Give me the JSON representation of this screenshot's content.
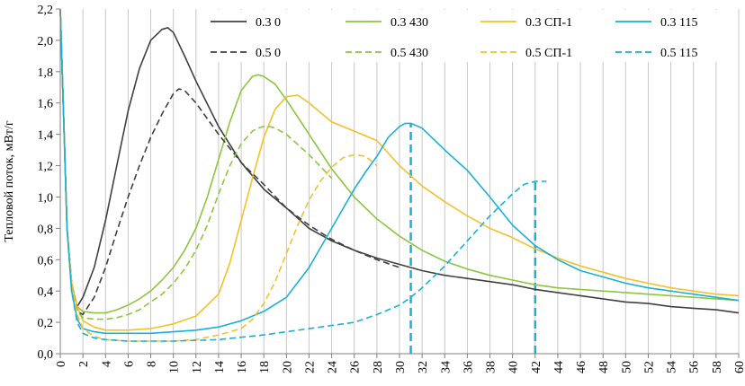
{
  "chart_data": {
    "type": "line",
    "title": "",
    "xlabel": "",
    "ylabel": "Тепловой поток, мВт/г",
    "xlim": [
      0,
      60
    ],
    "ylim": [
      0,
      2.2
    ],
    "x_ticks": [
      0,
      2,
      4,
      6,
      8,
      10,
      12,
      14,
      16,
      18,
      20,
      22,
      24,
      26,
      28,
      30,
      32,
      34,
      36,
      38,
      40,
      42,
      44,
      46,
      48,
      50,
      52,
      54,
      56,
      58,
      60
    ],
    "y_ticks": [
      0,
      0.2,
      0.4,
      0.6,
      0.8,
      1.0,
      1.2,
      1.4,
      1.6,
      1.8,
      2.0,
      2.2
    ],
    "y_tick_labels": [
      "0,0",
      "0,2",
      "0,4",
      "0,6",
      "0,8",
      "1,0",
      "1,2",
      "1,4",
      "1,6",
      "1,8",
      "2,0",
      "2,2"
    ],
    "grid": "vertical",
    "legend_position": "top-right",
    "series": [
      {
        "name": "0.3 0",
        "color": "#404040",
        "dash": "solid",
        "x": [
          0,
          0.3,
          0.6,
          1.0,
          1.5,
          2,
          3,
          4,
          5,
          6,
          7,
          8,
          9,
          9.5,
          10,
          11,
          12,
          14,
          16,
          18,
          20,
          22,
          24,
          26,
          28,
          30,
          32,
          34,
          36,
          38,
          40,
          42,
          44,
          46,
          48,
          50,
          52,
          54,
          56,
          58,
          60
        ],
        "y": [
          2.2,
          1.5,
          0.8,
          0.45,
          0.3,
          0.36,
          0.55,
          0.85,
          1.2,
          1.55,
          1.82,
          2.0,
          2.07,
          2.08,
          2.05,
          1.9,
          1.74,
          1.45,
          1.22,
          1.05,
          0.93,
          0.8,
          0.72,
          0.66,
          0.61,
          0.57,
          0.53,
          0.5,
          0.48,
          0.46,
          0.44,
          0.41,
          0.39,
          0.37,
          0.35,
          0.33,
          0.32,
          0.3,
          0.29,
          0.28,
          0.26
        ]
      },
      {
        "name": "0.3 430",
        "color": "#8cc63f",
        "dash": "solid",
        "x": [
          0,
          0.3,
          0.6,
          1.0,
          1.5,
          2,
          3,
          4,
          5,
          6,
          7,
          8,
          9,
          10,
          11,
          12,
          13,
          14,
          15,
          16,
          17,
          17.5,
          18,
          19,
          20,
          22,
          24,
          26,
          28,
          30,
          32,
          34,
          36,
          38,
          40,
          42,
          44,
          46,
          48,
          50,
          52,
          54,
          56,
          58,
          60
        ],
        "y": [
          2.2,
          1.5,
          0.8,
          0.45,
          0.3,
          0.27,
          0.26,
          0.26,
          0.28,
          0.31,
          0.35,
          0.4,
          0.47,
          0.55,
          0.66,
          0.8,
          1.0,
          1.24,
          1.48,
          1.68,
          1.77,
          1.78,
          1.77,
          1.72,
          1.62,
          1.4,
          1.18,
          1.0,
          0.86,
          0.75,
          0.66,
          0.59,
          0.54,
          0.5,
          0.47,
          0.44,
          0.42,
          0.41,
          0.4,
          0.39,
          0.38,
          0.37,
          0.36,
          0.35,
          0.34
        ]
      },
      {
        "name": "0.3 СП-1",
        "color": "#f5c02a",
        "dash": "solid",
        "x": [
          0,
          0.3,
          0.6,
          1.0,
          1.5,
          2,
          3,
          4,
          6,
          8,
          10,
          12,
          14,
          15,
          16,
          17,
          18,
          19,
          20,
          21,
          22,
          24,
          26,
          28,
          30,
          32,
          34,
          36,
          38,
          40,
          42,
          44,
          46,
          48,
          50,
          52,
          54,
          56,
          58,
          60
        ],
        "y": [
          2.2,
          1.5,
          0.8,
          0.45,
          0.3,
          0.21,
          0.17,
          0.15,
          0.15,
          0.16,
          0.19,
          0.24,
          0.38,
          0.58,
          0.85,
          1.12,
          1.38,
          1.56,
          1.64,
          1.65,
          1.6,
          1.48,
          1.42,
          1.36,
          1.2,
          1.07,
          0.97,
          0.88,
          0.8,
          0.74,
          0.67,
          0.61,
          0.56,
          0.52,
          0.48,
          0.45,
          0.42,
          0.4,
          0.38,
          0.37
        ]
      },
      {
        "name": "0.3 115",
        "color": "#1ab0d8",
        "dash": "solid",
        "x": [
          0,
          0.3,
          0.6,
          1.0,
          1.5,
          2,
          3,
          4,
          6,
          8,
          10,
          12,
          14,
          16,
          18,
          20,
          22,
          24,
          26,
          27,
          28,
          29,
          30,
          30.5,
          31,
          32,
          34,
          36,
          38,
          40,
          42,
          44,
          46,
          48,
          50,
          52,
          54,
          56,
          58,
          60
        ],
        "y": [
          2.2,
          1.5,
          0.8,
          0.4,
          0.22,
          0.16,
          0.14,
          0.13,
          0.13,
          0.13,
          0.14,
          0.15,
          0.17,
          0.21,
          0.27,
          0.36,
          0.55,
          0.8,
          1.05,
          1.16,
          1.26,
          1.38,
          1.45,
          1.47,
          1.47,
          1.44,
          1.3,
          1.17,
          1.0,
          0.82,
          0.69,
          0.6,
          0.53,
          0.49,
          0.45,
          0.42,
          0.4,
          0.38,
          0.36,
          0.34
        ]
      },
      {
        "name": "0.5 0",
        "color": "#404040",
        "dash": "dashed",
        "x": [
          0,
          0.3,
          0.6,
          1.0,
          1.5,
          2,
          3,
          4,
          5,
          6,
          7,
          8,
          9,
          10,
          10.5,
          11,
          12,
          14,
          16,
          18,
          20,
          22,
          24,
          26,
          28,
          30
        ],
        "y": [
          2.2,
          1.5,
          0.8,
          0.45,
          0.27,
          0.25,
          0.36,
          0.55,
          0.78,
          1.0,
          1.2,
          1.38,
          1.53,
          1.66,
          1.69,
          1.68,
          1.6,
          1.4,
          1.22,
          1.08,
          0.93,
          0.82,
          0.73,
          0.66,
          0.6,
          0.55
        ]
      },
      {
        "name": "0.5 430",
        "color": "#8cc63f",
        "dash": "dashed",
        "x": [
          0,
          0.3,
          0.6,
          1.0,
          1.5,
          2,
          3,
          4,
          5,
          6,
          7,
          8,
          9,
          10,
          11,
          12,
          13,
          14,
          15,
          16,
          17,
          17.5,
          18,
          18.5,
          19,
          20,
          22,
          24
        ],
        "y": [
          2.2,
          1.5,
          0.8,
          0.45,
          0.27,
          0.23,
          0.22,
          0.22,
          0.23,
          0.25,
          0.28,
          0.33,
          0.38,
          0.45,
          0.54,
          0.66,
          0.82,
          1.02,
          1.2,
          1.34,
          1.42,
          1.44,
          1.45,
          1.45,
          1.44,
          1.4,
          1.27,
          1.12
        ]
      },
      {
        "name": "0.5 СП-1",
        "color": "#f5c02a",
        "dash": "dashed",
        "x": [
          0,
          0.3,
          0.6,
          1.0,
          1.5,
          2,
          3,
          4,
          6,
          8,
          10,
          12,
          14,
          16,
          17,
          18,
          19,
          20,
          21,
          22,
          23,
          24,
          25,
          26,
          27,
          28
        ],
        "y": [
          2.2,
          1.5,
          0.8,
          0.45,
          0.25,
          0.16,
          0.11,
          0.09,
          0.08,
          0.08,
          0.08,
          0.09,
          0.12,
          0.16,
          0.22,
          0.32,
          0.46,
          0.64,
          0.82,
          0.98,
          1.1,
          1.19,
          1.25,
          1.27,
          1.26,
          1.2
        ]
      },
      {
        "name": "0.5 115",
        "color": "#1ab0d8",
        "dash": "dashed",
        "x": [
          0,
          0.3,
          0.6,
          1.0,
          1.5,
          2,
          3,
          4,
          6,
          8,
          10,
          14,
          18,
          22,
          26,
          28,
          30,
          31,
          32,
          33,
          34,
          36,
          38,
          40,
          41,
          42,
          43
        ],
        "y": [
          2.2,
          1.5,
          0.8,
          0.4,
          0.2,
          0.13,
          0.1,
          0.09,
          0.08,
          0.08,
          0.08,
          0.09,
          0.12,
          0.16,
          0.2,
          0.25,
          0.31,
          0.36,
          0.42,
          0.49,
          0.56,
          0.72,
          0.88,
          1.02,
          1.08,
          1.1,
          1.1
        ]
      }
    ],
    "annotations": [
      {
        "type": "vertical-line",
        "x": 31,
        "y_from": 0,
        "y_to": 1.47,
        "color": "#1ab0d8"
      },
      {
        "type": "vertical-line",
        "x": 42,
        "y_from": 0,
        "y_to": 1.1,
        "color": "#1ab0d8"
      }
    ]
  }
}
